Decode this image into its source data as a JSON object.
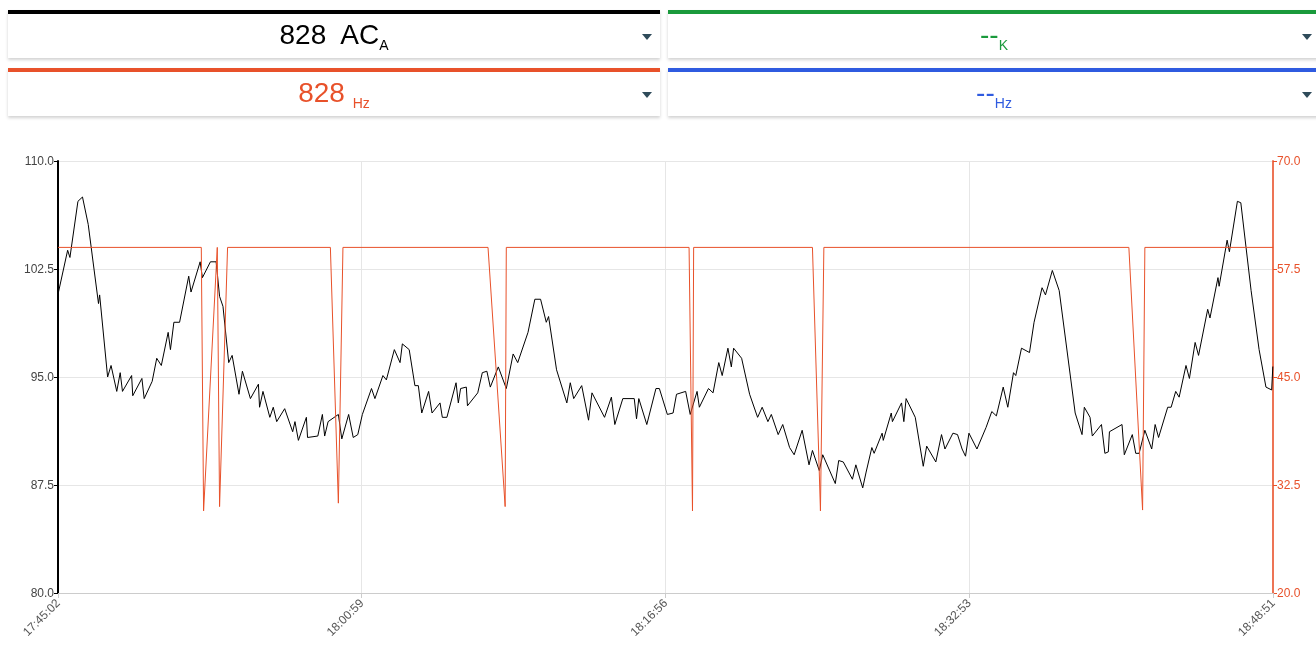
{
  "chart_data": {
    "type": "line",
    "annotations": [
      "828  AC$_{A}$",
      "--$_{K}$",
      "828 $_{Hz}$",
      "--$_{Hz}$"
    ],
    "xlim": [
      17.75056,
      18.81417
    ],
    "xticks": [
      {
        "value": 17.75056,
        "label": "17:45:02"
      },
      {
        "value": 18.01639,
        "label": "18:00:59"
      },
      {
        "value": 18.28222,
        "label": "18:16:56"
      },
      {
        "value": 18.54806,
        "label": "18:32:53"
      },
      {
        "value": 18.81417,
        "label": "18:48:51"
      }
    ],
    "ylim": [
      80,
      110
    ],
    "yticks": [
      {
        "value": 80,
        "label": "80.0"
      },
      {
        "value": 87.5,
        "label": "87.5"
      },
      {
        "value": 95,
        "label": "95.0"
      },
      {
        "value": 102.5,
        "label": "102.5"
      },
      {
        "value": 110,
        "label": "110.0"
      }
    ],
    "y2lim": [
      20,
      70
    ],
    "y2ticks": [
      {
        "value": 20,
        "label": "20.0"
      },
      {
        "value": 32.5,
        "label": "32.5"
      },
      {
        "value": 45,
        "label": "45.0"
      },
      {
        "value": 57.5,
        "label": "57.5"
      },
      {
        "value": 70,
        "label": "70.0"
      }
    ],
    "grid": true,
    "marker": "none",
    "line_style": "solid",
    "series": [
      {
        "color": "#000000",
        "x": [
          17.751,
          17.759,
          17.761,
          17.768,
          17.772,
          17.777,
          17.786,
          17.787,
          17.794,
          17.797,
          17.802,
          17.805,
          17.807,
          17.815,
          17.816,
          17.824,
          17.826,
          17.833,
          17.837,
          17.841,
          17.847,
          17.849,
          17.852,
          17.857,
          17.865,
          17.867,
          17.875,
          17.877,
          17.884,
          17.889,
          17.892,
          17.895,
          17.9,
          17.903,
          17.909,
          17.912,
          17.919,
          17.926,
          17.927,
          17.93,
          17.936,
          17.939,
          17.942,
          17.949,
          17.956,
          17.958,
          17.961,
          17.968,
          17.969,
          17.978,
          17.982,
          17.984,
          17.987,
          17.996,
          17.999,
          18.005,
          18.009,
          18.013,
          18.017,
          18.025,
          18.028,
          18.035,
          18.038,
          18.045,
          18.05,
          18.052,
          18.058,
          18.063,
          18.066,
          18.069,
          18.075,
          18.078,
          18.085,
          18.087,
          18.091,
          18.099,
          18.101,
          18.103,
          18.108,
          18.109,
          18.118,
          18.122,
          18.126,
          18.129,
          18.136,
          18.143,
          18.149,
          18.153,
          18.162,
          18.168,
          18.173,
          18.178,
          18.18,
          18.187,
          18.196,
          18.199,
          18.202,
          18.209,
          18.215,
          18.218,
          18.229,
          18.235,
          18.238,
          18.245,
          18.255,
          18.257,
          18.259,
          18.266,
          18.274,
          18.277,
          18.284,
          18.289,
          18.292,
          18.3,
          18.304,
          18.31,
          18.312,
          18.32,
          18.324,
          18.329,
          18.332,
          18.337,
          18.34,
          18.342,
          18.349,
          18.356,
          18.363,
          18.367,
          18.372,
          18.375,
          18.381,
          18.385,
          18.391,
          18.395,
          18.402,
          18.408,
          18.411,
          18.417,
          18.42,
          18.431,
          18.434,
          18.438,
          18.446,
          18.449,
          18.455,
          18.458,
          18.463,
          18.465,
          18.472,
          18.473,
          18.48,
          18.481,
          18.489,
          18.491,
          18.493,
          18.501,
          18.508,
          18.511,
          18.519,
          18.524,
          18.527,
          18.534,
          18.538,
          18.542,
          18.545,
          18.548,
          18.555,
          18.563,
          18.568,
          18.572,
          18.578,
          18.582,
          18.587,
          18.589,
          18.594,
          18.601,
          18.605,
          18.612,
          18.615,
          18.621,
          18.627,
          18.641,
          18.647,
          18.649,
          18.654,
          18.656,
          18.664,
          18.667,
          18.67,
          18.671,
          18.682,
          18.684,
          18.691,
          18.694,
          18.697,
          18.702,
          18.708,
          18.711,
          18.714,
          18.722,
          18.725,
          18.729,
          18.732,
          18.738,
          18.741,
          18.746,
          18.749,
          18.757,
          18.759,
          18.766,
          18.767,
          18.774,
          18.776,
          18.783,
          18.786,
          18.795,
          18.802,
          18.808,
          18.813,
          18.814
        ],
        "values": [
          100.9,
          103.8,
          103.3,
          107.2,
          107.5,
          105.6,
          100.1,
          100.7,
          95.0,
          95.8,
          94.0,
          95.3,
          94.0,
          95.1,
          93.7,
          94.9,
          93.5,
          94.7,
          96.3,
          95.8,
          98.1,
          96.9,
          98.8,
          98.8,
          102.0,
          100.9,
          103.0,
          101.9,
          103.0,
          103.0,
          100.6,
          99.9,
          96.0,
          96.5,
          93.8,
          95.4,
          93.5,
          94.5,
          92.9,
          94.0,
          92.2,
          92.9,
          91.9,
          92.8,
          91.2,
          91.9,
          90.6,
          92.2,
          90.8,
          90.9,
          92.4,
          90.9,
          91.9,
          92.4,
          90.7,
          92.4,
          90.8,
          91.0,
          92.4,
          94.2,
          93.5,
          95.1,
          94.8,
          96.9,
          96.0,
          97.3,
          96.9,
          94.4,
          94.4,
          92.5,
          94.0,
          92.5,
          93.2,
          92.2,
          92.2,
          94.6,
          93.2,
          94.2,
          94.3,
          93.0,
          93.9,
          95.3,
          95.4,
          94.3,
          95.7,
          94.2,
          96.6,
          96.0,
          98.1,
          100.4,
          100.4,
          98.8,
          99.2,
          95.5,
          93.2,
          94.6,
          93.5,
          94.4,
          92.0,
          93.9,
          92.2,
          93.6,
          91.7,
          93.5,
          93.5,
          92.1,
          93.5,
          91.7,
          94.2,
          94.2,
          92.4,
          92.5,
          93.8,
          94.0,
          92.4,
          94.0,
          92.9,
          94.2,
          93.9,
          96.0,
          95.1,
          97.0,
          95.7,
          97.0,
          96.3,
          93.8,
          92.2,
          92.9,
          91.9,
          92.4,
          91.0,
          91.7,
          90.1,
          89.6,
          91.3,
          88.9,
          89.9,
          88.5,
          89.6,
          87.6,
          89.2,
          89.1,
          87.9,
          88.9,
          87.3,
          88.4,
          90.1,
          89.7,
          91.1,
          90.6,
          92.5,
          91.9,
          93.2,
          91.9,
          93.5,
          92.2,
          88.8,
          90.2,
          89.1,
          91.0,
          90.0,
          91.1,
          91.0,
          90.0,
          89.5,
          91.1,
          90.0,
          91.5,
          92.6,
          92.3,
          94.3,
          92.9,
          95.3,
          95.1,
          97.0,
          96.7,
          98.8,
          101.2,
          100.7,
          102.4,
          101.0,
          92.5,
          91.0,
          92.9,
          92.2,
          90.9,
          91.7,
          89.7,
          89.8,
          91.2,
          91.7,
          89.6,
          91.0,
          89.7,
          89.7,
          91.3,
          90.0,
          91.7,
          90.8,
          92.9,
          92.9,
          94.0,
          93.6,
          95.8,
          94.9,
          97.4,
          96.5,
          99.7,
          99.1,
          101.9,
          101.3,
          104.5,
          103.7,
          107.2,
          107.1,
          101.0,
          96.9,
          94.3,
          94.1,
          95.7
        ]
      },
      {
        "color": "#e8512a",
        "axis": "y2",
        "x": [
          17.751,
          17.876,
          17.878,
          17.89,
          17.892,
          17.899,
          17.989,
          17.996,
          18.0,
          18.127,
          18.142,
          18.143,
          18.303,
          18.306,
          18.307,
          18.411,
          18.418,
          18.421,
          18.688,
          18.7,
          18.702,
          18.814
        ],
        "values": [
          60,
          60,
          29.5,
          60,
          30,
          60,
          60,
          30.4,
          60,
          60,
          30,
          60,
          60,
          29.5,
          60,
          60,
          29.5,
          60,
          60,
          29.6,
          60,
          60
        ]
      }
    ]
  }
}
